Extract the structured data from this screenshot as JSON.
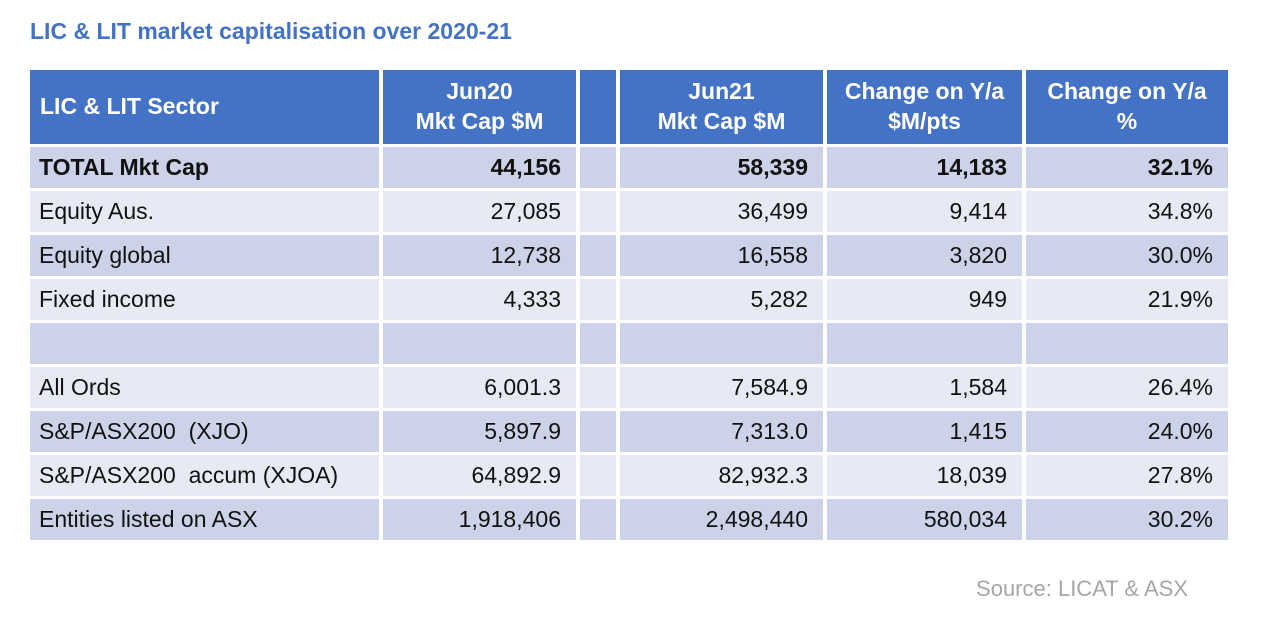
{
  "page": {
    "title": "LIC & LIT market capitalisation over 2020-21",
    "source_note": "Source: LICAT & ASX"
  },
  "colors": {
    "header_bg": "#4472C4",
    "header_text": "#FFFFFF",
    "band_dark": "#CCD2E7",
    "band_light": "#E7EAF4",
    "title_text": "#4472C4",
    "source_text": "#A6A6A6"
  },
  "table": {
    "columns": [
      {
        "label": "LIC & LIT Sector"
      },
      {
        "label": "Jun20\nMkt Cap $M"
      },
      {
        "label": ""
      },
      {
        "label": "Jun21\nMkt Cap $M"
      },
      {
        "label": "Change on Y/a\n$M/pts"
      },
      {
        "label": "Change on Y/a\n%"
      }
    ],
    "rows": [
      {
        "band": "dark",
        "bold": true,
        "cells": [
          "TOTAL Mkt Cap",
          "44,156",
          "",
          "58,339",
          "14,183",
          "32.1%"
        ]
      },
      {
        "band": "light",
        "bold": false,
        "cells": [
          "Equity Aus.",
          "27,085",
          "",
          "36,499",
          "9,414",
          "34.8%"
        ]
      },
      {
        "band": "dark",
        "bold": false,
        "cells": [
          "Equity global",
          "12,738",
          "",
          "16,558",
          "3,820",
          "30.0%"
        ]
      },
      {
        "band": "light",
        "bold": false,
        "cells": [
          "Fixed income",
          "4,333",
          "",
          "5,282",
          "949",
          "21.9%"
        ]
      },
      {
        "band": "dark",
        "bold": false,
        "cells": [
          "",
          "",
          "",
          "",
          "",
          ""
        ]
      },
      {
        "band": "light",
        "bold": false,
        "cells": [
          "All Ords",
          "6,001.3",
          "",
          "7,584.9",
          "1,584",
          "26.4%"
        ]
      },
      {
        "band": "dark",
        "bold": false,
        "cells": [
          "S&P/ASX200  (XJO)",
          "5,897.9",
          "",
          "7,313.0",
          "1,415",
          "24.0%"
        ]
      },
      {
        "band": "light",
        "bold": false,
        "cells": [
          "S&P/ASX200  accum (XJOA)",
          "64,892.9",
          "",
          "82,932.3",
          "18,039",
          "27.8%"
        ]
      },
      {
        "band": "dark",
        "bold": false,
        "cells": [
          "Entities listed on ASX",
          "1,918,406",
          "",
          "2,498,440",
          "580,034",
          "30.2%"
        ]
      }
    ]
  },
  "chart_data": {
    "type": "table",
    "title": "LIC & LIT market capitalisation over 2020-21",
    "columns": [
      "LIC & LIT Sector",
      "Jun20 Mkt Cap $M",
      "Jun21 Mkt Cap $M",
      "Change on Y/a $M/pts",
      "Change on Y/a %"
    ],
    "rows": [
      [
        "TOTAL Mkt Cap",
        44156,
        58339,
        14183,
        32.1
      ],
      [
        "Equity Aus.",
        27085,
        36499,
        9414,
        34.8
      ],
      [
        "Equity global",
        12738,
        16558,
        3820,
        30.0
      ],
      [
        "Fixed income",
        4333,
        5282,
        949,
        21.9
      ],
      [
        "All Ords",
        6001.3,
        7584.9,
        1584,
        26.4
      ],
      [
        "S&P/ASX200 (XJO)",
        5897.9,
        7313.0,
        1415,
        24.0
      ],
      [
        "S&P/ASX200 accum (XJOA)",
        64892.9,
        82932.3,
        18039,
        27.8
      ],
      [
        "Entities listed on ASX",
        1918406,
        2498440,
        580034,
        30.2
      ]
    ],
    "source": "Source: LICAT & ASX"
  }
}
